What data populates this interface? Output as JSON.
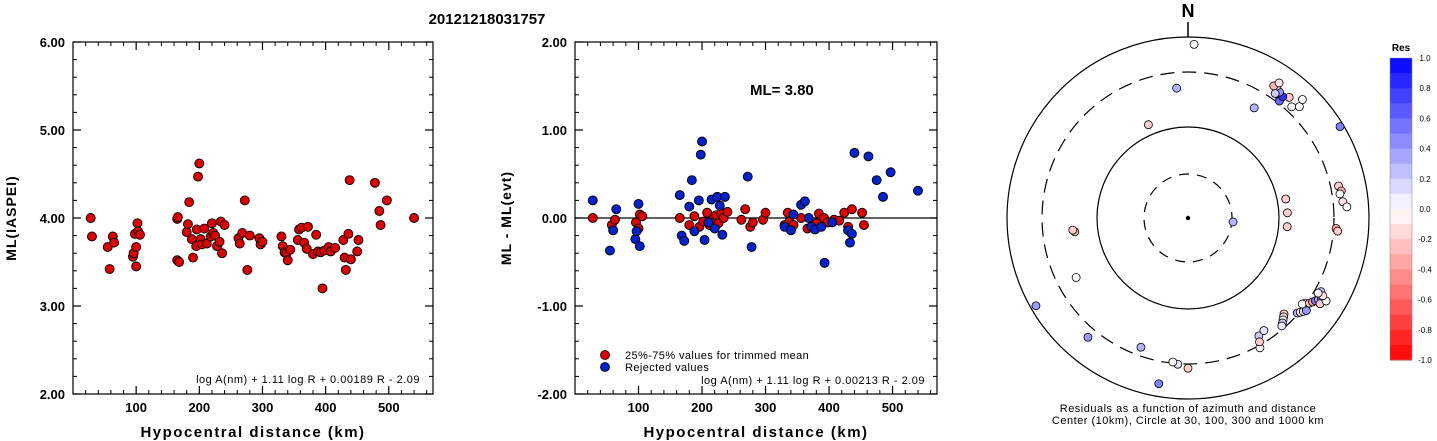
{
  "figure_title": "20121218031757",
  "chart_data": [
    {
      "type": "scatter",
      "id": "ml-vs-distance",
      "xlabel": "Hypocentral distance (km)",
      "ylabel": "ML(IASPEI)",
      "xlim": [
        0,
        570
      ],
      "ylim": [
        2.0,
        6.0
      ],
      "x_ticks": [
        100,
        200,
        300,
        400,
        500
      ],
      "y_ticks": [
        "2.00",
        "3.00",
        "4.00",
        "5.00",
        "6.00"
      ],
      "formula": "log A(nm) + 1.11 log R + 0.00189 R - 2.09",
      "marker_color": "#dd0000",
      "points": [
        [
          28,
          4.0
        ],
        [
          30,
          3.79
        ],
        [
          55,
          3.67
        ],
        [
          58,
          3.42
        ],
        [
          63,
          3.79
        ],
        [
          65,
          3.72
        ],
        [
          95,
          3.56
        ],
        [
          96,
          3.6
        ],
        [
          98,
          3.82
        ],
        [
          100,
          3.45
        ],
        [
          100,
          3.67
        ],
        [
          102,
          3.94
        ],
        [
          103,
          3.85
        ],
        [
          106,
          3.81
        ],
        [
          165,
          3.52
        ],
        [
          165,
          3.99
        ],
        [
          166,
          4.01
        ],
        [
          168,
          3.5
        ],
        [
          180,
          3.84
        ],
        [
          182,
          3.93
        ],
        [
          184,
          4.18
        ],
        [
          188,
          3.76
        ],
        [
          190,
          3.55
        ],
        [
          195,
          3.68
        ],
        [
          196,
          3.87
        ],
        [
          198,
          4.47
        ],
        [
          200,
          4.62
        ],
        [
          202,
          3.76
        ],
        [
          204,
          3.7
        ],
        [
          208,
          3.88
        ],
        [
          212,
          3.71
        ],
        [
          218,
          3.79
        ],
        [
          220,
          3.94
        ],
        [
          222,
          3.83
        ],
        [
          225,
          3.8
        ],
        [
          228,
          3.68
        ],
        [
          232,
          3.73
        ],
        [
          234,
          3.96
        ],
        [
          236,
          3.6
        ],
        [
          240,
          3.92
        ],
        [
          262,
          3.77
        ],
        [
          264,
          3.71
        ],
        [
          268,
          3.83
        ],
        [
          272,
          4.2
        ],
        [
          276,
          3.41
        ],
        [
          280,
          3.8
        ],
        [
          295,
          3.77
        ],
        [
          297,
          3.7
        ],
        [
          300,
          3.73
        ],
        [
          330,
          3.79
        ],
        [
          332,
          3.68
        ],
        [
          335,
          3.61
        ],
        [
          338,
          3.6
        ],
        [
          340,
          3.52
        ],
        [
          344,
          3.64
        ],
        [
          356,
          3.75
        ],
        [
          358,
          3.87
        ],
        [
          362,
          3.89
        ],
        [
          366,
          3.72
        ],
        [
          370,
          3.65
        ],
        [
          372,
          3.9
        ],
        [
          380,
          3.59
        ],
        [
          385,
          3.81
        ],
        [
          388,
          3.62
        ],
        [
          392,
          3.61
        ],
        [
          395,
          3.2
        ],
        [
          398,
          3.63
        ],
        [
          405,
          3.67
        ],
        [
          408,
          3.62
        ],
        [
          415,
          3.66
        ],
        [
          428,
          3.75
        ],
        [
          430,
          3.55
        ],
        [
          432,
          3.41
        ],
        [
          436,
          3.82
        ],
        [
          438,
          4.43
        ],
        [
          440,
          3.53
        ],
        [
          450,
          3.62
        ],
        [
          452,
          3.75
        ],
        [
          478,
          4.4
        ],
        [
          485,
          4.08
        ],
        [
          487,
          3.92
        ],
        [
          497,
          4.2
        ],
        [
          540,
          4.0
        ]
      ]
    },
    {
      "type": "scatter",
      "id": "residual-vs-distance",
      "xlabel": "Hypocentral distance (km)",
      "ylabel": "ML - ML(evt)",
      "xlim": [
        0,
        570
      ],
      "ylim": [
        -2.0,
        2.0
      ],
      "x_ticks": [
        100,
        200,
        300,
        400,
        500
      ],
      "y_ticks": [
        "-2.00",
        "-1.00",
        "0.00",
        "1.00",
        "2.00"
      ],
      "annotation": "ML= 3.80",
      "formula": "log A(nm) + 1.11 log R + 0.00213 R - 2.09",
      "legend": [
        {
          "label": "25%-75% values for trimmed mean",
          "color": "#dd0000"
        },
        {
          "label": "Rejected values",
          "color": "#0022cc"
        }
      ],
      "series": [
        {
          "name": "25%-75% values for trimmed mean",
          "color": "#dd0000",
          "points": [
            [
              28,
              0.0
            ],
            [
              58,
              -0.08
            ],
            [
              63,
              -0.02
            ],
            [
              96,
              -0.05
            ],
            [
              100,
              -0.12
            ],
            [
              102,
              0.04
            ],
            [
              106,
              0.02
            ],
            [
              165,
              0.0
            ],
            [
              180,
              -0.08
            ],
            [
              188,
              0.02
            ],
            [
              196,
              -0.1
            ],
            [
              202,
              -0.04
            ],
            [
              208,
              0.06
            ],
            [
              212,
              -0.08
            ],
            [
              218,
              -0.01
            ],
            [
              222,
              0.03
            ],
            [
              226,
              -0.06
            ],
            [
              230,
              0.05
            ],
            [
              234,
              0.0
            ],
            [
              240,
              0.07
            ],
            [
              262,
              -0.02
            ],
            [
              268,
              0.1
            ],
            [
              276,
              -0.1
            ],
            [
              280,
              -0.05
            ],
            [
              296,
              -0.02
            ],
            [
              300,
              0.06
            ],
            [
              330,
              -0.08
            ],
            [
              335,
              0.06
            ],
            [
              338,
              -0.04
            ],
            [
              344,
              -0.08
            ],
            [
              356,
              0.0
            ],
            [
              366,
              -0.12
            ],
            [
              380,
              -0.06
            ],
            [
              384,
              0.05
            ],
            [
              392,
              0.0
            ],
            [
              398,
              -0.05
            ],
            [
              408,
              -0.02
            ],
            [
              416,
              -0.03
            ],
            [
              424,
              0.06
            ],
            [
              430,
              -0.1
            ],
            [
              436,
              0.1
            ],
            [
              452,
              0.06
            ],
            [
              455,
              -0.08
            ]
          ]
        },
        {
          "name": "Rejected values",
          "color": "#0022cc",
          "points": [
            [
              28,
              0.2
            ],
            [
              55,
              -0.37
            ],
            [
              60,
              -0.14
            ],
            [
              65,
              0.1
            ],
            [
              95,
              -0.24
            ],
            [
              97,
              -0.15
            ],
            [
              100,
              0.16
            ],
            [
              102,
              -0.32
            ],
            [
              165,
              0.26
            ],
            [
              168,
              -0.2
            ],
            [
              172,
              -0.26
            ],
            [
              180,
              0.13
            ],
            [
              184,
              0.43
            ],
            [
              188,
              -0.15
            ],
            [
              195,
              0.2
            ],
            [
              198,
              0.72
            ],
            [
              200,
              0.87
            ],
            [
              204,
              -0.25
            ],
            [
              210,
              -0.05
            ],
            [
              215,
              0.21
            ],
            [
              220,
              -0.12
            ],
            [
              224,
              0.24
            ],
            [
              228,
              0.14
            ],
            [
              232,
              -0.19
            ],
            [
              236,
              0.24
            ],
            [
              272,
              0.47
            ],
            [
              278,
              -0.33
            ],
            [
              330,
              -0.1
            ],
            [
              340,
              -0.14
            ],
            [
              344,
              0.04
            ],
            [
              356,
              0.15
            ],
            [
              362,
              0.19
            ],
            [
              368,
              0.0
            ],
            [
              372,
              -0.1
            ],
            [
              378,
              -0.13
            ],
            [
              388,
              -0.1
            ],
            [
              393,
              -0.51
            ],
            [
              405,
              -0.05
            ],
            [
              430,
              -0.14
            ],
            [
              433,
              -0.28
            ],
            [
              436,
              -0.18
            ],
            [
              440,
              0.74
            ],
            [
              462,
              0.7
            ],
            [
              475,
              0.43
            ],
            [
              485,
              0.24
            ],
            [
              497,
              0.52
            ],
            [
              540,
              0.31
            ]
          ]
        }
      ]
    },
    {
      "type": "scatter",
      "id": "azimuth-residuals",
      "north_label": "N",
      "caption_line1": "Residuals as a function of azimuth and distance",
      "caption_line2": "Center (10km), Circle at 30, 100, 300 and 1000 km",
      "colorbar_title": "Res",
      "colorbar_ticks": [
        "1.0",
        "0.8",
        "0.6",
        "0.4",
        "0.2",
        "0.0",
        "-0.2",
        "-0.4",
        "-0.6",
        "-0.8",
        "-1.0"
      ],
      "colorbar_range": [
        -1.0,
        1.0
      ],
      "colors": {
        "positive": "#0000ff",
        "negative": "#ff0000",
        "zero": "#ffffff"
      },
      "stations": [
        [
          2,
          0.96,
          0.0
        ],
        [
          355,
          0.72,
          0.3
        ],
        [
          45,
          0.87,
          0.0
        ],
        [
          43,
          0.84,
          0.0
        ],
        [
          40,
          0.87,
          -0.2
        ],
        [
          37,
          0.84,
          0.4
        ],
        [
          38,
          0.82,
          0.6
        ],
        [
          38,
          0.85,
          0.8
        ],
        [
          36,
          0.86,
          0.4
        ],
        [
          35,
          0.84,
          0.2
        ],
        [
          34,
          0.88,
          -0.2
        ],
        [
          33,
          0.87,
          -0.3
        ],
        [
          34,
          0.9,
          -0.1
        ],
        [
          31,
          0.71,
          0.3
        ],
        [
          44,
          0.91,
          0.0
        ],
        [
          59,
          0.98,
          0.5
        ],
        [
          78,
          0.85,
          -0.2
        ],
        [
          80,
          0.86,
          -0.3
        ],
        [
          81,
          0.85,
          0.0
        ],
        [
          84,
          0.86,
          -0.1
        ],
        [
          86,
          0.88,
          0.0
        ],
        [
          94,
          0.82,
          -0.4
        ],
        [
          95,
          0.83,
          -0.2
        ],
        [
          79,
          0.55,
          -0.2
        ],
        [
          87,
          0.55,
          -0.2
        ],
        [
          95,
          0.55,
          -0.2
        ],
        [
          95,
          0.25,
          0.3
        ],
        [
          337,
          0.56,
          -0.2
        ],
        [
          263,
          0.63,
          -0.3
        ],
        [
          264,
          0.64,
          -0.2
        ],
        [
          242,
          0.7,
          0.0
        ],
        [
          240,
          0.97,
          0.4
        ],
        [
          220,
          0.86,
          0.4
        ],
        [
          190,
          0.93,
          0.5
        ],
        [
          200,
          0.76,
          0.3
        ],
        [
          180,
          0.83,
          -0.2
        ],
        [
          184,
          0.81,
          0.1
        ],
        [
          186,
          0.8,
          0.0
        ],
        [
          135,
          0.75,
          -0.2
        ],
        [
          136,
          0.76,
          -0.1
        ],
        [
          137,
          0.77,
          0.0
        ],
        [
          138,
          0.78,
          0.2
        ],
        [
          139,
          0.79,
          0.1
        ],
        [
          131,
          0.8,
          0.3
        ],
        [
          130,
          0.81,
          -0.1
        ],
        [
          129,
          0.82,
          0.2
        ],
        [
          128,
          0.83,
          0.4
        ],
        [
          126,
          0.8,
          -0.3
        ],
        [
          127,
          0.79,
          0.0
        ],
        [
          125,
          0.82,
          -0.2
        ],
        [
          124,
          0.83,
          -0.4
        ],
        [
          123,
          0.84,
          0.5
        ],
        [
          122,
          0.85,
          0.3
        ],
        [
          121,
          0.86,
          0.6
        ],
        [
          123,
          0.87,
          -0.2
        ],
        [
          121,
          0.89,
          0.0
        ],
        [
          119,
          0.84,
          0.2
        ],
        [
          120,
          0.86,
          -0.1
        ],
        [
          120,
          0.83,
          0.0
        ],
        [
          149,
          0.76,
          0.2
        ],
        [
          151,
          0.82,
          0.0
        ],
        [
          146,
          0.75,
          0.1
        ],
        [
          150,
          0.79,
          -0.2
        ]
      ]
    }
  ]
}
